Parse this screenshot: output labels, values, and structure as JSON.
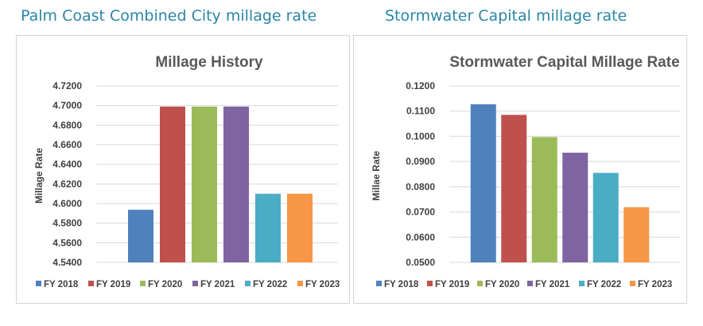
{
  "page": {
    "left_heading": "Palm Coast Combined City millage rate",
    "right_heading": "Stormwater Capital millage rate"
  },
  "colors": {
    "FY 2018": "#4f81bd",
    "FY 2019": "#c0504d",
    "FY 2020": "#9bbb59",
    "FY 2021": "#8064a2",
    "FY 2022": "#4bacc6",
    "FY 2023": "#f79646",
    "heading": "#2a86a6",
    "chart_title": "#595959",
    "text": "#404040",
    "grid": "#d9d9d9"
  },
  "chart_data": [
    {
      "type": "bar",
      "title": "Millage History",
      "xlabel": "",
      "ylabel": "Millage Rate",
      "ylim": [
        4.54,
        4.72
      ],
      "yticks": [
        "4.5400",
        "4.5600",
        "4.5800",
        "4.6000",
        "4.6200",
        "4.6400",
        "4.6600",
        "4.6800",
        "4.7000",
        "4.7200"
      ],
      "grid": true,
      "legend_position": "bottom",
      "series": [
        {
          "name": "FY 2018",
          "values": [
            4.5937
          ]
        },
        {
          "name": "FY 2019",
          "values": [
            4.6989
          ]
        },
        {
          "name": "FY 2020",
          "values": [
            4.6989
          ]
        },
        {
          "name": "FY 2021",
          "values": [
            4.6989
          ]
        },
        {
          "name": "FY 2022",
          "values": [
            4.61
          ]
        },
        {
          "name": "FY 2023",
          "values": [
            4.61
          ]
        }
      ]
    },
    {
      "type": "bar",
      "title": "Stormwater Capital Millage Rate",
      "xlabel": "",
      "ylabel": "Millae Rate",
      "ylim": [
        0.05,
        0.12
      ],
      "yticks": [
        "0.0500",
        "0.0600",
        "0.0700",
        "0.0800",
        "0.0900",
        "0.1000",
        "0.1100",
        "0.1200"
      ],
      "grid": true,
      "legend_position": "bottom",
      "series": [
        {
          "name": "FY 2018",
          "values": [
            0.1127
          ]
        },
        {
          "name": "FY 2019",
          "values": [
            0.1085
          ]
        },
        {
          "name": "FY 2020",
          "values": [
            0.0997
          ]
        },
        {
          "name": "FY 2021",
          "values": [
            0.0935
          ]
        },
        {
          "name": "FY 2022",
          "values": [
            0.0855
          ]
        },
        {
          "name": "FY 2023",
          "values": [
            0.0719
          ]
        }
      ]
    }
  ]
}
